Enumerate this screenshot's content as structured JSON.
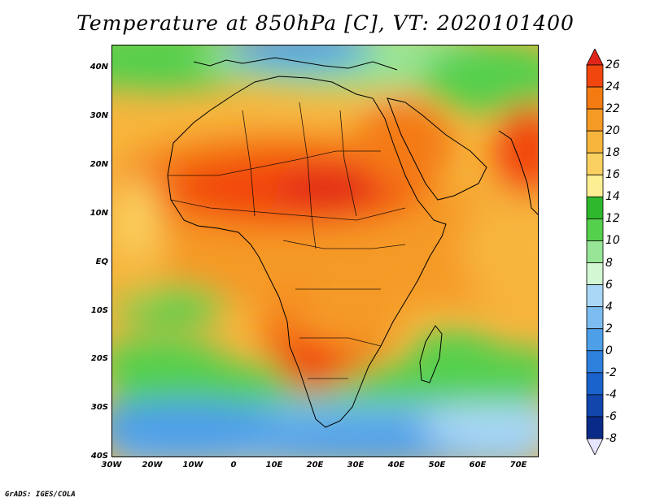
{
  "title": "Temperature at 850hPa [C], VT: 2020101400",
  "credit": "GrADS: IGES/COLA",
  "map": {
    "lat_labels": [
      "40N",
      "30N",
      "20N",
      "10N",
      "EQ",
      "10S",
      "20S",
      "30S",
      "40S"
    ],
    "lon_labels": [
      "30W",
      "20W",
      "10W",
      "0",
      "10E",
      "20E",
      "30E",
      "40E",
      "50E",
      "60E",
      "70E"
    ]
  },
  "colorbar": {
    "levels": [
      "26",
      "24",
      "22",
      "20",
      "18",
      "16",
      "14",
      "12",
      "10",
      "8",
      "6",
      "4",
      "2",
      "0",
      "-2",
      "-4",
      "-6",
      "-8"
    ],
    "colors": [
      "#e0261a",
      "#f2460f",
      "#f47a12",
      "#f59a25",
      "#f7b53d",
      "#fad160",
      "#fcee92",
      "#2db82d",
      "#55d04d",
      "#97e596",
      "#d2f7d2",
      "#a9d7f5",
      "#7cbcf0",
      "#4d9fe8",
      "#2d80dc",
      "#1a62cc",
      "#1246ad",
      "#0a2a88",
      "#061a5e"
    ]
  }
}
